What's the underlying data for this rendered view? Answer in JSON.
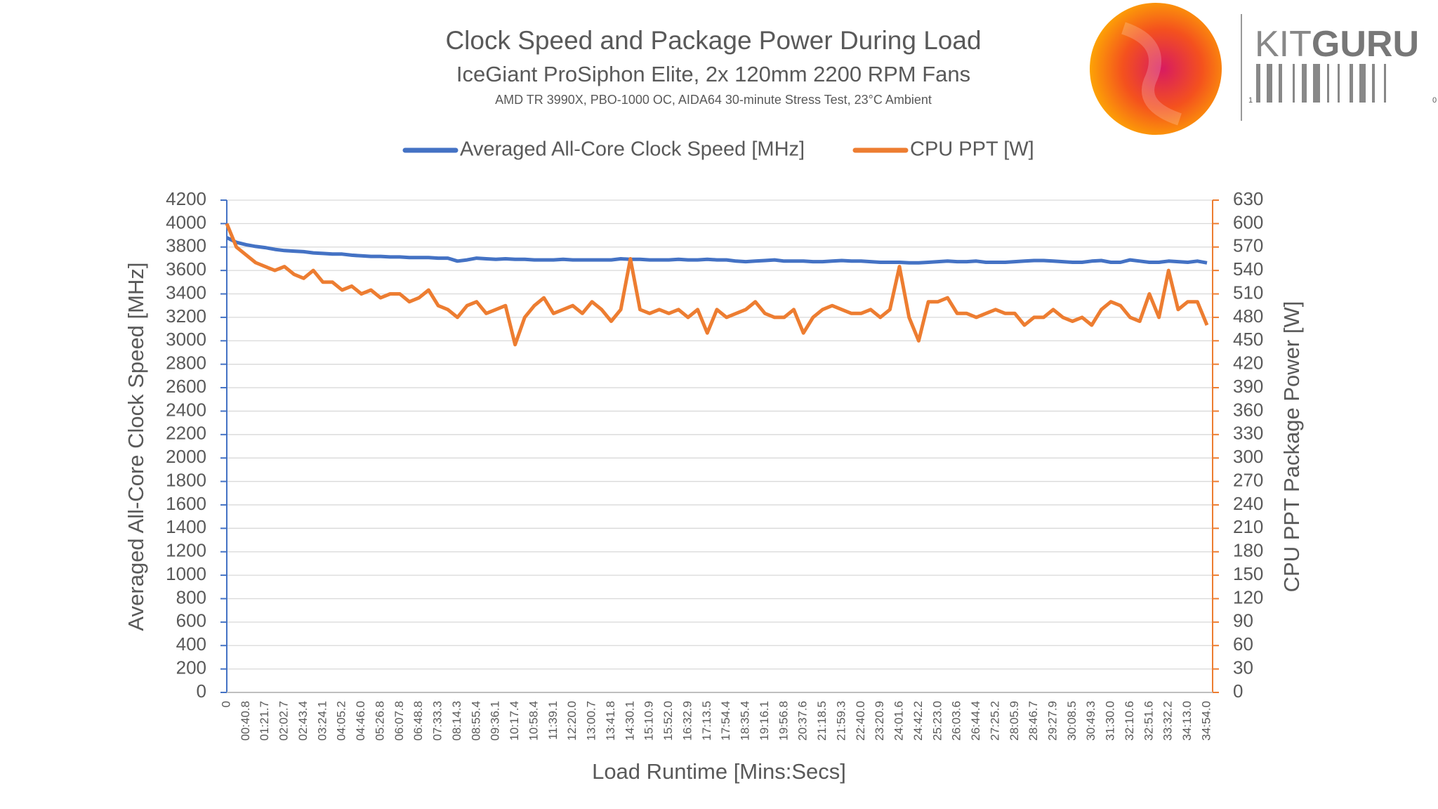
{
  "chart_data": {
    "type": "line",
    "title": "Clock Speed and Package Power During Load",
    "subtitle": "IceGiant ProSiphon Elite, 2x 120mm 2200 RPM Fans",
    "caption": "AMD TR 3990X, PBO-1000 OC, AIDA64 30-minute Stress Test, 23°C Ambient",
    "x_label": "Load Runtime [Mins:Secs]",
    "y_label": "Averaged All-Core Clock Speed [MHz]",
    "y2_label": "CPU PPT Package Power [W]",
    "categories": [
      "0",
      null,
      "00:40.8",
      null,
      "01:21.7",
      null,
      "02:02.7",
      null,
      "02:43.4",
      null,
      "03:24.1",
      null,
      "04:05.2",
      null,
      "04:46.0",
      null,
      "05:26.8",
      null,
      "06:07.8",
      null,
      "06:48.8",
      null,
      "07:33.3",
      null,
      "08:14.3",
      null,
      "08:55.4",
      null,
      "09:36.1",
      null,
      "10:17.4",
      null,
      "10:58.4",
      null,
      "11:39.1",
      null,
      "12:20.0",
      null,
      "13:00.7",
      null,
      "13:41.8",
      null,
      "14:30.1",
      null,
      "15:10.9",
      null,
      "15:52.0",
      null,
      "16:32.9",
      null,
      "17:13.5",
      null,
      "17:54.4",
      null,
      "18:35.4",
      null,
      "19:16.1",
      null,
      "19:56.8",
      null,
      "20:37.6",
      null,
      "21:18.5",
      null,
      "21:59.3",
      null,
      "22:40.0",
      null,
      "23:20.9",
      null,
      "24:01.6",
      null,
      "24:42.2",
      null,
      "25:23.0",
      null,
      "26:03.6",
      null,
      "26:44.4",
      null,
      "27:25.2",
      null,
      "28:05.9",
      null,
      "28:46.7",
      null,
      "29:27.9",
      null,
      "30:08.5",
      null,
      "30:49.3",
      null,
      "31:30.0",
      null,
      "32:10.6",
      null,
      "32:51.6",
      null,
      "33:32.2",
      null,
      "34:13.0",
      null,
      "34:54.0"
    ],
    "series": [
      {
        "name": "Averaged All-Core Clock Speed [MHz]",
        "color": "#4472c4",
        "axis": "y",
        "values": [
          3880,
          3840,
          3820,
          3805,
          3795,
          3780,
          3770,
          3765,
          3760,
          3750,
          3745,
          3740,
          3740,
          3730,
          3725,
          3720,
          3720,
          3715,
          3715,
          3710,
          3710,
          3710,
          3705,
          3705,
          3680,
          3690,
          3705,
          3700,
          3695,
          3700,
          3695,
          3695,
          3690,
          3690,
          3690,
          3695,
          3690,
          3690,
          3690,
          3690,
          3690,
          3700,
          3695,
          3695,
          3690,
          3690,
          3690,
          3695,
          3690,
          3690,
          3695,
          3690,
          3690,
          3680,
          3675,
          3680,
          3685,
          3690,
          3680,
          3680,
          3680,
          3675,
          3675,
          3680,
          3685,
          3680,
          3680,
          3675,
          3670,
          3670,
          3670,
          3665,
          3665,
          3670,
          3675,
          3680,
          3675,
          3675,
          3680,
          3670,
          3670,
          3670,
          3675,
          3680,
          3685,
          3685,
          3680,
          3675,
          3670,
          3670,
          3680,
          3685,
          3670,
          3670,
          3690,
          3680,
          3670,
          3670,
          3680,
          3675,
          3670,
          3680,
          3665
        ]
      },
      {
        "name": "CPU PPT [W]",
        "color": "#ed7d31",
        "axis": "y2",
        "values": [
          600,
          570,
          560,
          550,
          545,
          540,
          545,
          535,
          530,
          540,
          525,
          525,
          515,
          520,
          510,
          515,
          505,
          510,
          510,
          500,
          505,
          515,
          495,
          490,
          480,
          495,
          500,
          485,
          490,
          495,
          445,
          480,
          495,
          505,
          485,
          490,
          495,
          485,
          500,
          490,
          475,
          490,
          555,
          490,
          485,
          490,
          485,
          490,
          480,
          490,
          460,
          490,
          480,
          485,
          490,
          500,
          485,
          480,
          480,
          490,
          460,
          480,
          490,
          495,
          490,
          485,
          485,
          490,
          480,
          490,
          545,
          480,
          450,
          500,
          500,
          505,
          485,
          485,
          480,
          485,
          490,
          485,
          485,
          470,
          480,
          480,
          490,
          480,
          475,
          480,
          470,
          490,
          500,
          495,
          480,
          475,
          510,
          480,
          540,
          490,
          500,
          500,
          470
        ]
      }
    ],
    "ylim": [
      0,
      4200
    ],
    "yticks": [
      0,
      200,
      400,
      600,
      800,
      1000,
      1200,
      1400,
      1600,
      1800,
      2000,
      2200,
      2400,
      2600,
      2800,
      3000,
      3200,
      3400,
      3600,
      3800,
      4000,
      4200
    ],
    "y2lim": [
      0,
      630
    ],
    "y2ticks": [
      0,
      30,
      60,
      90,
      120,
      150,
      180,
      210,
      240,
      270,
      300,
      330,
      360,
      390,
      420,
      450,
      480,
      510,
      540,
      570,
      600,
      630
    ],
    "grid": true,
    "legend": "top"
  },
  "logo": {
    "text1": "KIT",
    "text2": "GURU",
    "barcode_left": "1",
    "barcode_right": "0"
  }
}
